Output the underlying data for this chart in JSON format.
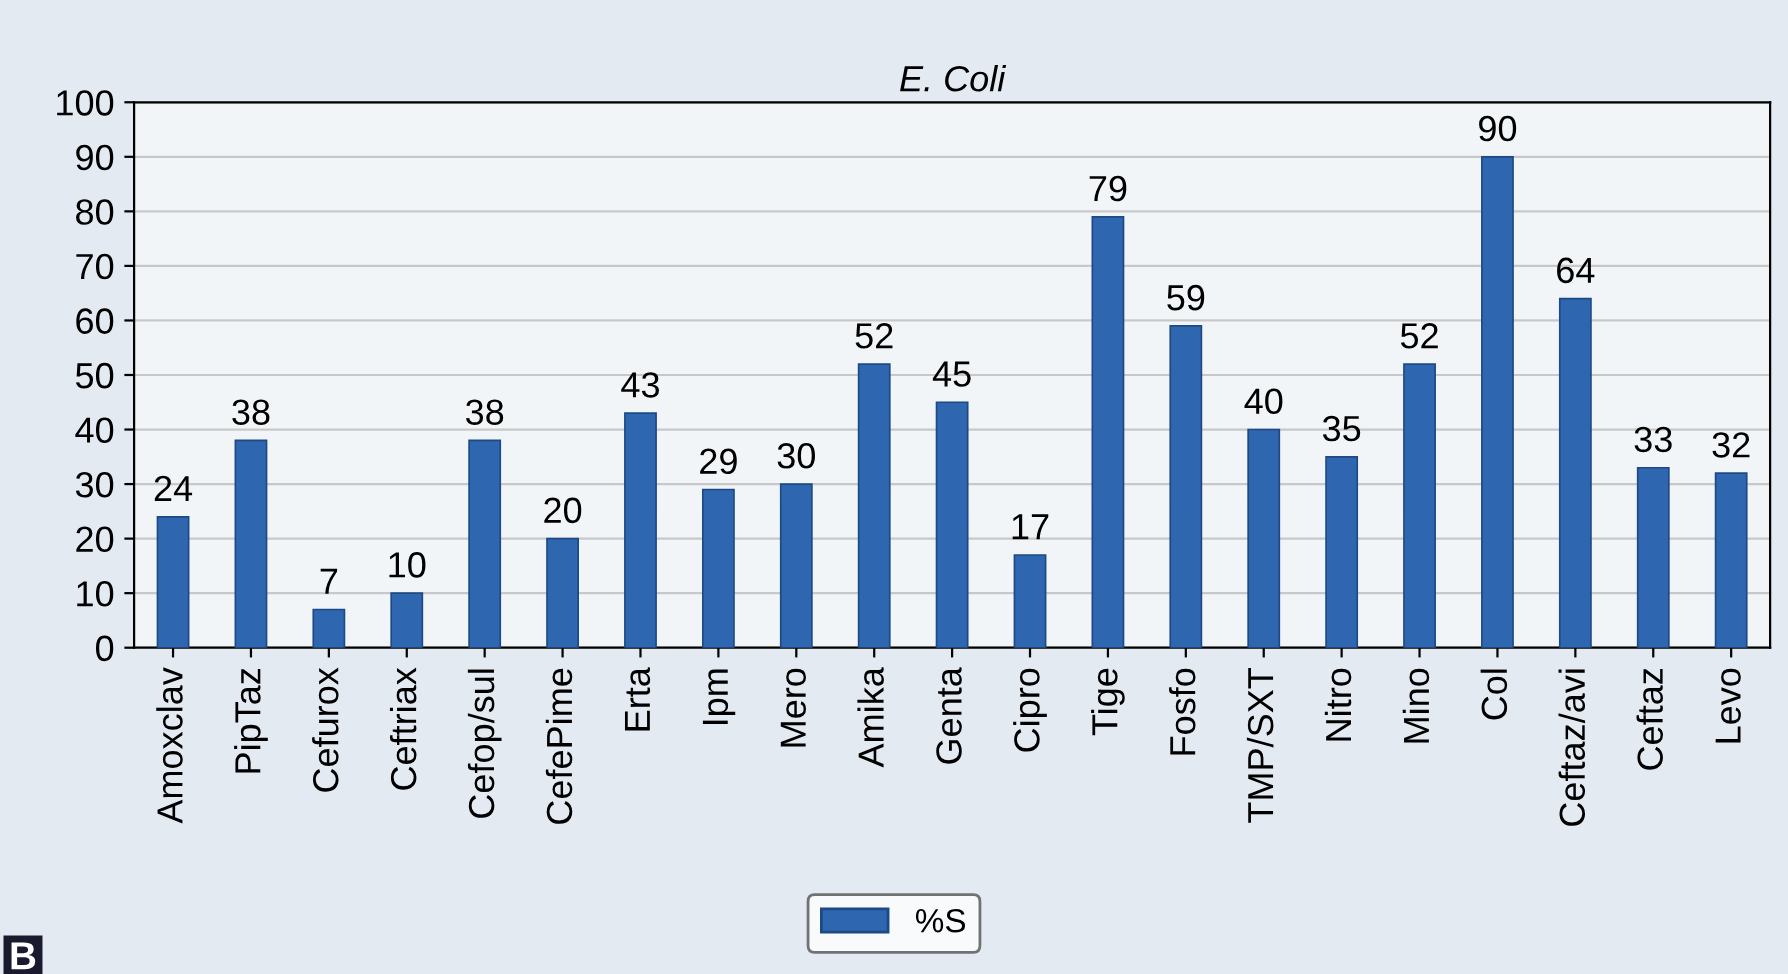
{
  "chart_data": {
    "type": "bar",
    "title": "E. Coli",
    "categories": [
      "Amoxclav",
      "PipTaz",
      "Cefurox",
      "Ceftriax",
      "Cefop/sul",
      "CefePime",
      "Erta",
      "Ipm",
      "Mero",
      "Amika",
      "Genta",
      "Cipro",
      "Tige",
      "Fosfo",
      "TMP/SXT",
      "Nitro",
      "Mino",
      "Col",
      "Ceftaz/avi",
      "Ceftaz",
      "Levo"
    ],
    "series": [
      {
        "name": "%S",
        "color": "#2e66b0",
        "values": [
          24,
          38,
          7,
          10,
          38,
          20,
          43,
          29,
          30,
          52,
          45,
          17,
          79,
          59,
          40,
          35,
          52,
          90,
          64,
          33,
          32
        ]
      }
    ],
    "ylim": [
      0,
      100
    ],
    "yticks": [
      0,
      10,
      20,
      30,
      40,
      50,
      60,
      70,
      80,
      90,
      100
    ],
    "grid": "y",
    "legend": "bottom",
    "data_labels": true,
    "annotations": [
      "B"
    ]
  }
}
